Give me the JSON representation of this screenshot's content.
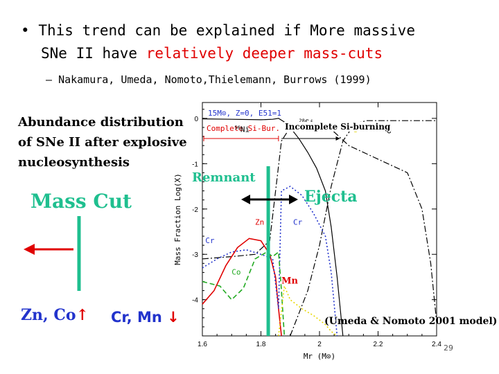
{
  "bullet": {
    "symbol": "•",
    "line1_black": "This trend can be explained if More massive",
    "line2_black": "SNe II have ",
    "line2_red": "relatively deeper mass-cuts"
  },
  "sub_bullet": {
    "dash": "–",
    "text": "Nakamura, Umeda, Nomoto,Thielemann, Burrows (1999)"
  },
  "abundance_title": {
    "line1": "Abundance distribution",
    "line2": "of SNe II after explosive",
    "line3": "nucleosynthesis"
  },
  "mass_cut_label": "Mass Cut",
  "bottom_left": {
    "zn_co": "Zn, Co",
    "up_arrow": "↑",
    "cr_mn": "Cr, Mn",
    "down_arrow": "↓"
  },
  "remnant_label": "Remnant",
  "ejecta_label": "Ejecta",
  "citation": "(Umeda & Nomoto 2001 model)",
  "page_number": "29",
  "incomplete_label": "Incomplete Si-burning",
  "colors": {
    "accent_green": "#1fbf8f",
    "red": "#e00000",
    "blue": "#2233cc",
    "yellow": "#e8d800"
  },
  "chart_data": {
    "type": "line",
    "title": "",
    "xlabel": "Mr (M⊙)",
    "ylabel": "Mass Fraction Log(X)",
    "xlim": [
      1.6,
      2.4
    ],
    "ylim": [
      -4.8,
      0.35
    ],
    "x_ticks": [
      "1.6",
      "1.8",
      "2",
      "2.2",
      "2.4"
    ],
    "y_ticks": [
      "0",
      "-1",
      "-2",
      "-3",
      "-4"
    ],
    "model_label": "15M⊙, Z=0, E51=1",
    "region_labels": {
      "complete": "Complete Si-Bur.",
      "incomplete_overlay": "Incomplete Si-burning",
      "partial": "ng"
    },
    "mass_cut": 1.825,
    "series": [
      {
        "name": "56Ni",
        "style": "solid",
        "color": "#000000",
        "x": [
          1.6,
          1.7,
          1.8,
          1.84,
          1.86,
          1.88,
          1.9,
          1.93,
          1.96,
          1.99,
          2.02,
          2.04,
          2.06,
          2.08
        ],
        "y": [
          -0.01,
          -0.02,
          -0.03,
          -0.02,
          0.0,
          -0.08,
          -0.2,
          -0.45,
          -0.75,
          -1.1,
          -1.6,
          -2.4,
          -3.5,
          -4.8
        ]
      },
      {
        "name": "28Si",
        "style": "dashdot",
        "color": "#000000",
        "x": [
          1.6,
          1.7,
          1.78,
          1.83,
          1.87,
          1.9,
          1.95,
          2.0,
          2.05,
          2.1,
          2.2,
          2.3,
          2.35,
          2.38,
          2.4
        ],
        "y": [
          -3.1,
          -3.05,
          -3.0,
          -2.7,
          -0.5,
          -0.2,
          -0.1,
          -0.12,
          -0.3,
          -0.6,
          -0.9,
          -1.2,
          -2.0,
          -3.2,
          -4.5
        ]
      },
      {
        "name": "16O",
        "style": "dashdot",
        "color": "#000000",
        "x": [
          1.9,
          1.96,
          2.0,
          2.04,
          2.08,
          2.12,
          2.16,
          2.2,
          2.25,
          2.3,
          2.35,
          2.4
        ],
        "y": [
          -4.8,
          -3.8,
          -2.8,
          -1.5,
          -0.5,
          -0.12,
          -0.05,
          -0.05,
          -0.05,
          -0.05,
          -0.05,
          -0.05
        ]
      },
      {
        "name": "Zn",
        "style": "solid",
        "color": "#e00000",
        "x": [
          1.6,
          1.64,
          1.68,
          1.72,
          1.76,
          1.8,
          1.83,
          1.85,
          1.86,
          1.87
        ],
        "y": [
          -4.1,
          -3.8,
          -3.25,
          -2.85,
          -2.65,
          -2.7,
          -3.0,
          -3.5,
          -4.2,
          -4.8
        ]
      },
      {
        "name": "Cr",
        "style": "dotted",
        "color": "#2233cc",
        "x": [
          1.6,
          1.65,
          1.7,
          1.75,
          1.8,
          1.84,
          1.86,
          1.87,
          1.9,
          1.94,
          1.98,
          2.02,
          2.04,
          2.06
        ],
        "y": [
          -3.3,
          -3.1,
          -2.95,
          -2.9,
          -3.0,
          -3.1,
          -4.2,
          -1.6,
          -1.5,
          -1.7,
          -2.1,
          -2.6,
          -3.4,
          -4.8
        ]
      },
      {
        "name": "Co",
        "style": "dashed",
        "color": "#22aa22",
        "x": [
          1.6,
          1.66,
          1.7,
          1.74,
          1.78,
          1.82,
          1.84,
          1.86,
          1.87,
          1.88
        ],
        "y": [
          -3.6,
          -3.7,
          -4.0,
          -3.75,
          -3.1,
          -2.95,
          -3.05,
          -2.95,
          -3.8,
          -4.8
        ]
      },
      {
        "name": "Mn",
        "style": "dotted",
        "color": "#e8d800",
        "x": [
          1.86,
          1.88,
          1.9,
          1.94,
          1.98,
          2.02,
          2.04,
          2.06
        ],
        "y": [
          -4.8,
          -3.7,
          -4.0,
          -4.2,
          -4.35,
          -4.55,
          -4.7,
          -4.8
        ]
      }
    ],
    "annotations": [
      {
        "text": "56Ni",
        "x": 1.71,
        "y": -0.3,
        "color": "#000000"
      },
      {
        "text": "28Si",
        "x": 1.93,
        "y": -0.15,
        "color": "#000000"
      },
      {
        "text": "16O",
        "x": 2.21,
        "y": -0.33,
        "color": "#000000"
      },
      {
        "text": "Zn",
        "x": 1.78,
        "y": -2.35,
        "color": "#e00000"
      },
      {
        "text": "Cr",
        "x": 1.61,
        "y": -2.75,
        "color": "#2233cc"
      },
      {
        "text": "Cr",
        "x": 1.91,
        "y": -2.35,
        "color": "#2233cc"
      },
      {
        "text": "Co",
        "x": 1.7,
        "y": -3.45,
        "color": "#22aa22"
      },
      {
        "text": "Mn",
        "x": 1.87,
        "y": -3.65,
        "color": "#e00000"
      }
    ]
  }
}
